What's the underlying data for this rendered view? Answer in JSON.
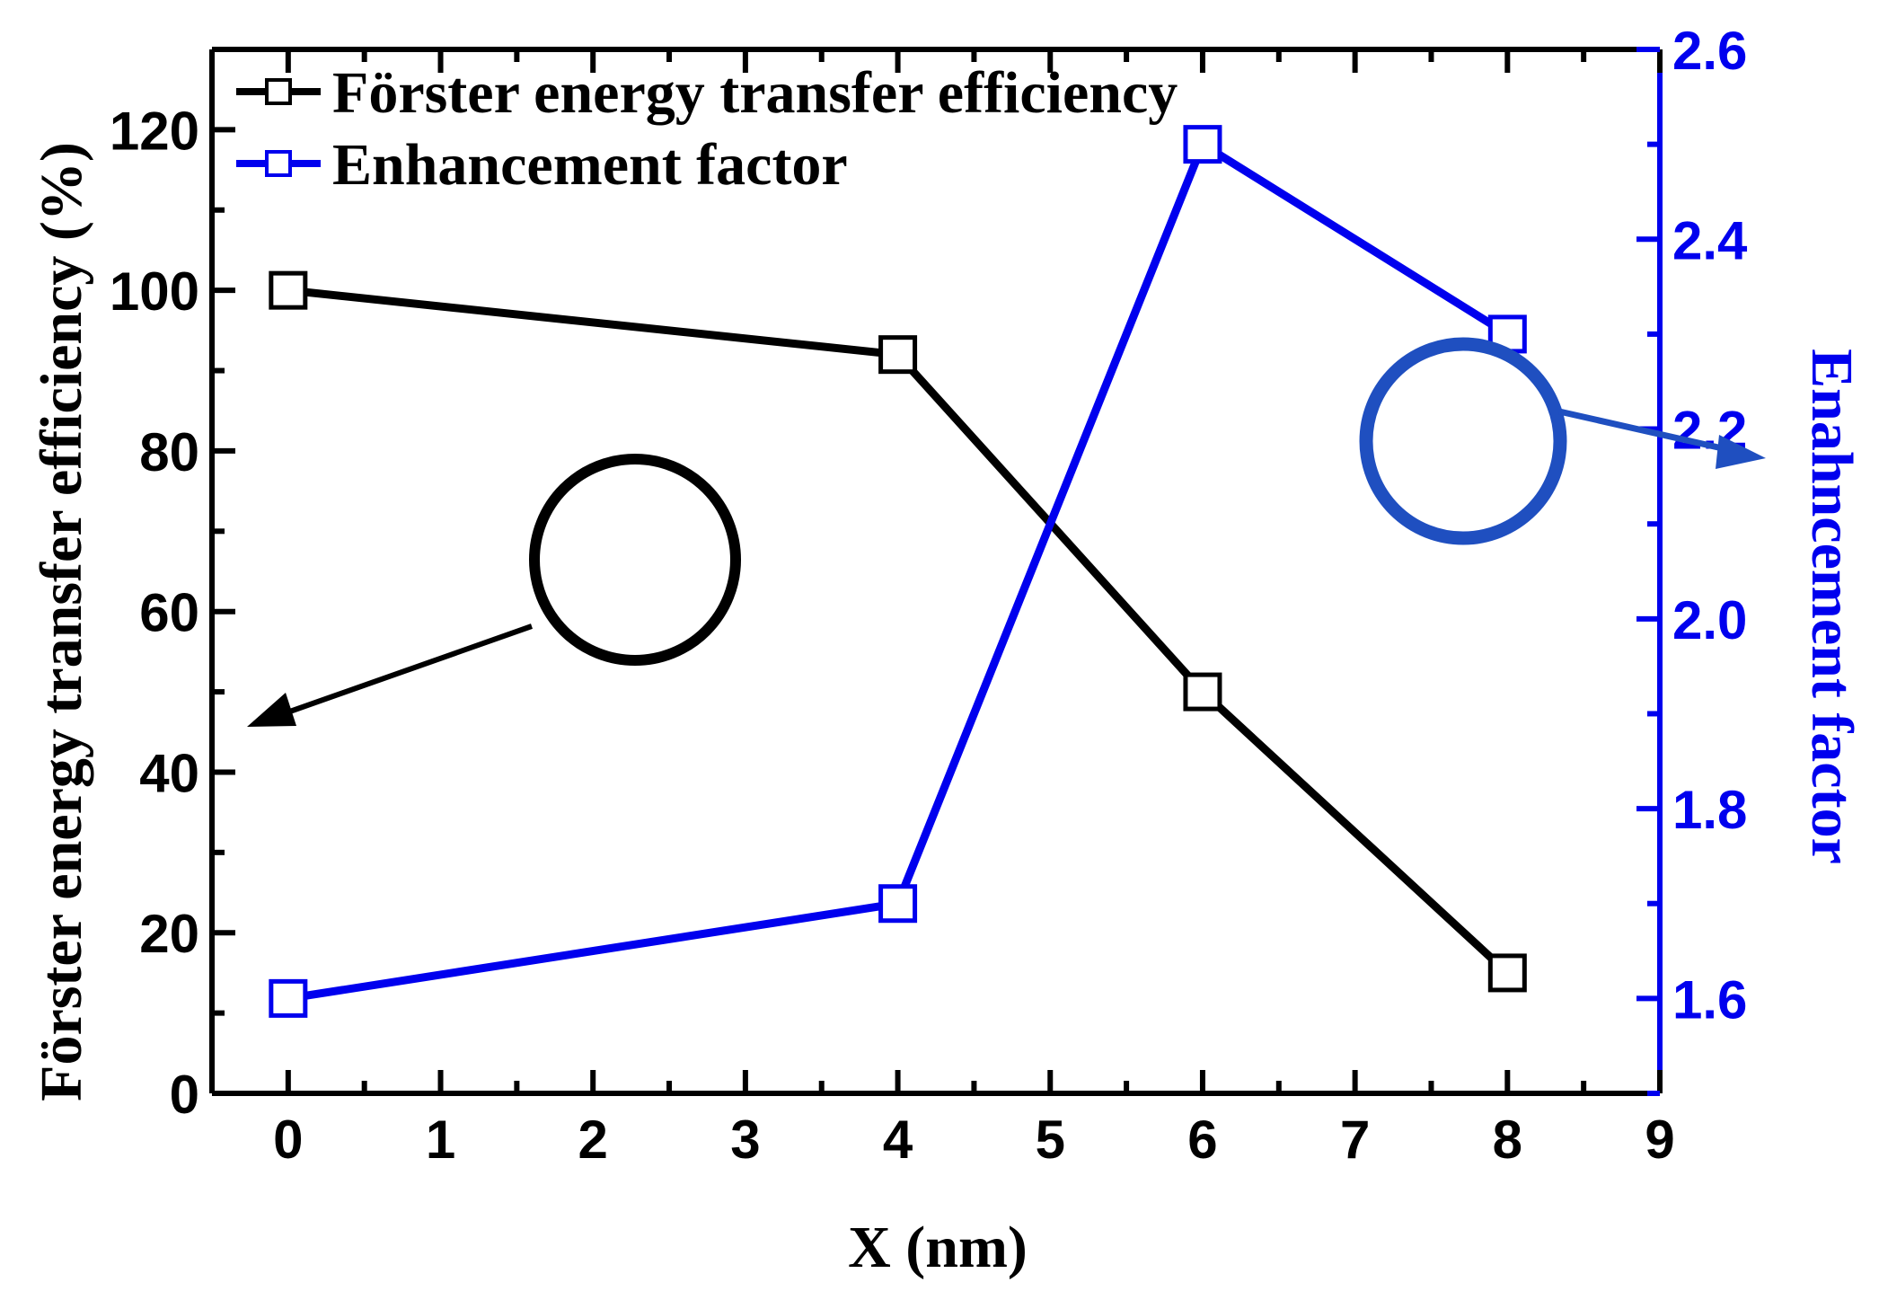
{
  "chart_data": {
    "type": "line",
    "xlabel": "X (nm)",
    "ylabel_left": "Förster energy transfer efficiency (%)",
    "ylabel_right": "Enahncement factor",
    "xlim": [
      -0.5,
      9
    ],
    "ylim_left": [
      0,
      130
    ],
    "ylim_right": [
      1.5,
      2.6
    ],
    "x_ticks": [
      0,
      1,
      2,
      3,
      4,
      5,
      6,
      7,
      8,
      9
    ],
    "y_ticks_left": [
      0,
      20,
      40,
      60,
      80,
      100,
      120
    ],
    "y_ticks_right": [
      1.6,
      1.8,
      2.0,
      2.2,
      2.4,
      2.6
    ],
    "legend_position": "top-left",
    "series": [
      {
        "name": "Förster energy transfer efficiency",
        "axis": "left",
        "color": "#000000",
        "marker": "open-square",
        "x": [
          0,
          4,
          6,
          8
        ],
        "y": [
          100,
          92,
          50,
          15
        ]
      },
      {
        "name": "Enhancement factor",
        "axis": "right",
        "color": "#0000ee",
        "marker": "open-square",
        "x": [
          0,
          4,
          6,
          8
        ],
        "y": [
          1.6,
          1.7,
          2.5,
          2.3
        ]
      }
    ],
    "annotations": [
      {
        "kind": "circle-arrow",
        "color": "#000000",
        "points_to": "left axis"
      },
      {
        "kind": "circle-arrow",
        "color": "#1f4fc0",
        "points_to": "right axis"
      }
    ]
  }
}
